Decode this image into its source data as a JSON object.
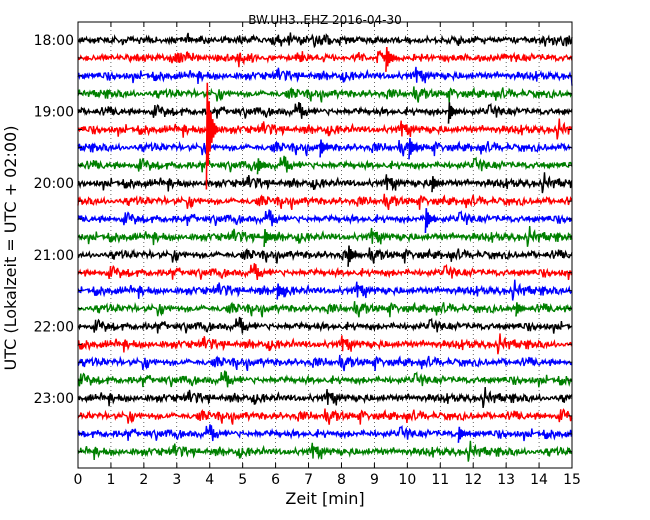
{
  "chart_data": {
    "type": "line",
    "title": "BW.UH3..EHZ 2016-04-30",
    "xlabel": "Zeit  [min]",
    "ylabel": "UTC (Lokalzeit = UTC + 02:00)",
    "xlim": [
      0,
      15
    ],
    "x_ticks": [
      "0",
      "1",
      "2",
      "3",
      "4",
      "5",
      "6",
      "7",
      "8",
      "9",
      "10",
      "11",
      "12",
      "13",
      "14",
      "15"
    ],
    "y_ticks": [
      "18:00",
      "19:00",
      "20:00",
      "21:00",
      "22:00",
      "23:00"
    ],
    "grid": "vertical dotted",
    "trace_interval_min": 15,
    "traces": [
      {
        "start": "18:00",
        "color": "#000000"
      },
      {
        "start": "18:15",
        "color": "#ff0000"
      },
      {
        "start": "18:30",
        "color": "#0000ff"
      },
      {
        "start": "18:45",
        "color": "#008000"
      },
      {
        "start": "19:00",
        "color": "#000000"
      },
      {
        "start": "19:15",
        "color": "#ff0000"
      },
      {
        "start": "19:30",
        "color": "#0000ff"
      },
      {
        "start": "19:45",
        "color": "#008000"
      },
      {
        "start": "20:00",
        "color": "#000000"
      },
      {
        "start": "20:15",
        "color": "#ff0000"
      },
      {
        "start": "20:30",
        "color": "#0000ff"
      },
      {
        "start": "20:45",
        "color": "#008000"
      },
      {
        "start": "21:00",
        "color": "#000000"
      },
      {
        "start": "21:15",
        "color": "#ff0000"
      },
      {
        "start": "21:30",
        "color": "#0000ff"
      },
      {
        "start": "21:45",
        "color": "#008000"
      },
      {
        "start": "22:00",
        "color": "#000000"
      },
      {
        "start": "22:15",
        "color": "#ff0000"
      },
      {
        "start": "22:30",
        "color": "#0000ff"
      },
      {
        "start": "22:45",
        "color": "#008000"
      },
      {
        "start": "23:00",
        "color": "#000000"
      },
      {
        "start": "23:15",
        "color": "#ff0000"
      },
      {
        "start": "23:30",
        "color": "#0000ff"
      },
      {
        "start": "23:45",
        "color": "#008000"
      }
    ]
  }
}
